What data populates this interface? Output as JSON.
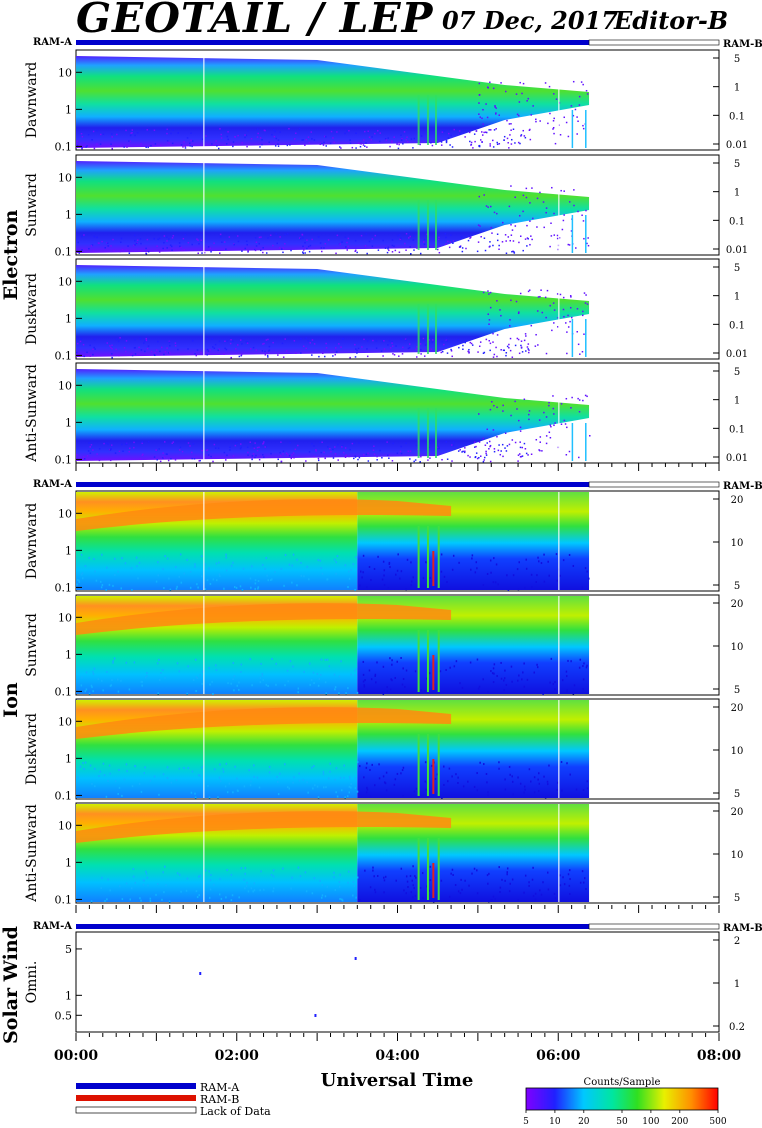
{
  "header": {
    "title": "GEOTAIL / LEP",
    "date": "07 Dec, 2017",
    "editor": "Editor-B"
  },
  "ram_labels": {
    "left": "RAM-A",
    "right": "RAM-B"
  },
  "groups": {
    "electron": "Electron",
    "ion": "Ion",
    "solar_wind": "Solar Wind"
  },
  "legend": {
    "ram_a": "RAM-A",
    "ram_b": "RAM-B",
    "lack": "Lack of Data",
    "colorbar_title": "Counts/Sample",
    "colorbar_ticks": [
      "5",
      "10",
      "20",
      "50",
      "100",
      "200",
      "500"
    ]
  },
  "colors": {
    "ram_a": "#0000cc",
    "ram_b": "#dd1100"
  },
  "chart_data": {
    "type": "heatmap",
    "xlabel": "Universal Time",
    "x_range": [
      "00:00",
      "08:00"
    ],
    "x_ticks": [
      "00:00",
      "02:00",
      "04:00",
      "06:00",
      "08:00"
    ],
    "data_end": "06:23",
    "electron_panels": [
      {
        "ylabel": "Dawnward",
        "y_ticks": [
          "10",
          "1",
          "0.1"
        ],
        "right_ticks": [
          "5",
          "1",
          "0.1",
          "0.01"
        ]
      },
      {
        "ylabel": "Sunward",
        "y_ticks": [
          "10",
          "1",
          "0.1"
        ],
        "right_ticks": [
          "5",
          "1",
          "0.1",
          "0.01"
        ]
      },
      {
        "ylabel": "Duskward",
        "y_ticks": [
          "10",
          "1",
          "0.1"
        ],
        "right_ticks": [
          "5",
          "1",
          "0.1",
          "0.01"
        ]
      },
      {
        "ylabel": "Anti-Sunward",
        "y_ticks": [
          "10",
          "1",
          "0.1"
        ],
        "right_ticks": [
          "5",
          "1",
          "0.1",
          "0.01"
        ]
      }
    ],
    "ion_panels": [
      {
        "ylabel": "Dawnward",
        "y_ticks": [
          "10",
          "1",
          "0.1"
        ],
        "right_ticks": [
          "20",
          "10",
          "5"
        ]
      },
      {
        "ylabel": "Sunward",
        "y_ticks": [
          "10",
          "1",
          "0.1"
        ],
        "right_ticks": [
          "20",
          "10",
          "5"
        ]
      },
      {
        "ylabel": "Duskward",
        "y_ticks": [
          "10",
          "1",
          "0.1"
        ],
        "right_ticks": [
          "20",
          "10",
          "5"
        ]
      },
      {
        "ylabel": "Anti-Sunward",
        "y_ticks": [
          "10",
          "1",
          "0.1"
        ],
        "right_ticks": [
          "20",
          "10",
          "5"
        ]
      }
    ],
    "solar_wind_panel": {
      "ylabel": "Omni.",
      "y_ticks": [
        "5",
        "1",
        "0.5"
      ],
      "right_ticks": [
        "2",
        "1",
        "0.2"
      ]
    }
  }
}
